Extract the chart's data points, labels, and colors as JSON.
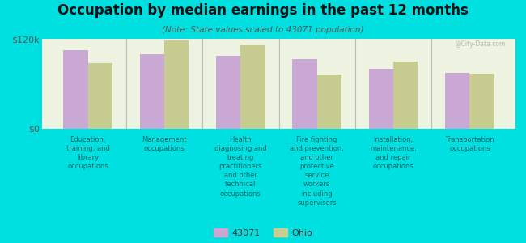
{
  "title": "Occupation by median earnings in the past 12 months",
  "subtitle": "(Note: State values scaled to 43071 population)",
  "background_color": "#00e0e0",
  "plot_bg_color": "#eef3e2",
  "bar_color_43071": "#c9a8d4",
  "bar_color_ohio": "#c8cc90",
  "ylim": [
    0,
    120000
  ],
  "ytick_labels": [
    "$0",
    "$120k"
  ],
  "categories": [
    "Education,\ntraining, and\nlibrary\noccupations",
    "Management\noccupations",
    "Health\ndiagnosing and\ntreating\npractitioners\nand other\ntechnical\noccupations",
    "Fire fighting\nand prevention,\nand other\nprotective\nservice\nworkers\nincluding\nsupervisors",
    "Installation,\nmaintenance,\nand repair\noccupations",
    "Transportation\noccupations"
  ],
  "values_43071": [
    105000,
    100000,
    97000,
    93000,
    80000,
    75000
  ],
  "values_ohio": [
    88000,
    118000,
    112000,
    72000,
    90000,
    74000
  ],
  "legend_labels": [
    "43071",
    "Ohio"
  ],
  "watermark": "@City-Data.com",
  "title_fontsize": 12,
  "subtitle_fontsize": 7.5,
  "label_fontsize": 6,
  "legend_fontsize": 8
}
